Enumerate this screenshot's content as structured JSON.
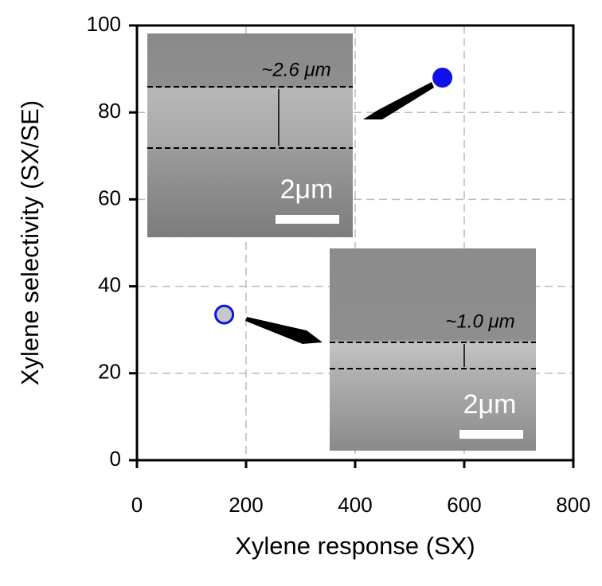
{
  "chart_data": {
    "type": "scatter",
    "xlabel": "Xylene response (SX)",
    "ylabel": "Xylene selectivity (SX/SE)",
    "x": [
      560,
      160
    ],
    "values": [
      88,
      33.5
    ],
    "colors": [
      "#1010e8",
      "#c8c8c8"
    ],
    "edgecolor": "#1010e8",
    "xlim": [
      0,
      800
    ],
    "xticks": [
      0,
      200,
      400,
      600,
      800
    ],
    "ylim": [
      0,
      100
    ],
    "yticks": [
      0,
      20,
      40,
      60,
      80,
      100
    ],
    "grid": true,
    "annotations": [
      "~2.6 μm",
      "2μm",
      "~1.0 μm",
      "2μm"
    ]
  }
}
